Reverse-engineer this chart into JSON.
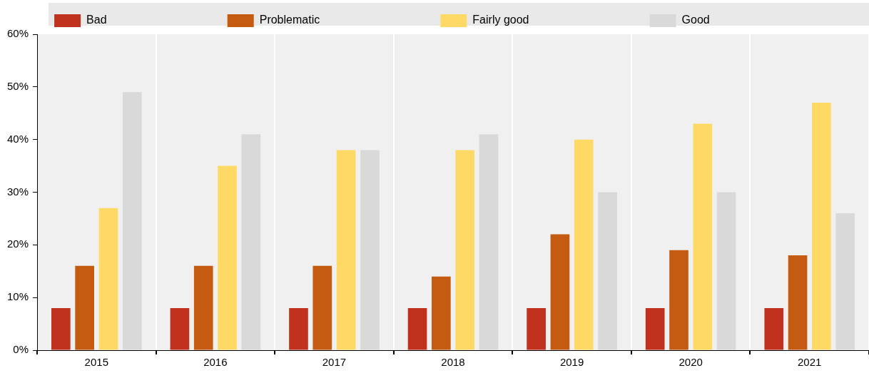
{
  "chart_data": {
    "type": "bar",
    "categories": [
      "2015",
      "2016",
      "2017",
      "2018",
      "2019",
      "2020",
      "2021"
    ],
    "series": [
      {
        "name": "Bad",
        "color": "#c0321d",
        "values": [
          8,
          8,
          8,
          8,
          8,
          8,
          8
        ]
      },
      {
        "name": "Problematic",
        "color": "#c55a11",
        "values": [
          16,
          16,
          16,
          14,
          22,
          19,
          18
        ]
      },
      {
        "name": "Fairly good",
        "color": "#ffd966",
        "values": [
          27,
          35,
          38,
          38,
          40,
          43,
          47
        ]
      },
      {
        "name": "Good",
        "color": "#d9d9d9",
        "values": [
          49,
          41,
          38,
          41,
          30,
          30,
          26
        ]
      }
    ],
    "ylim": [
      0,
      60
    ],
    "yticks": [
      {
        "value": 0,
        "label": "0%"
      },
      {
        "value": 10,
        "label": "10%"
      },
      {
        "value": 20,
        "label": "20%"
      },
      {
        "value": 30,
        "label": "30%"
      },
      {
        "value": 40,
        "label": "40%"
      },
      {
        "value": 50,
        "label": "50%"
      },
      {
        "value": 60,
        "label": "60%"
      }
    ],
    "grid": "x",
    "legend": "top"
  }
}
